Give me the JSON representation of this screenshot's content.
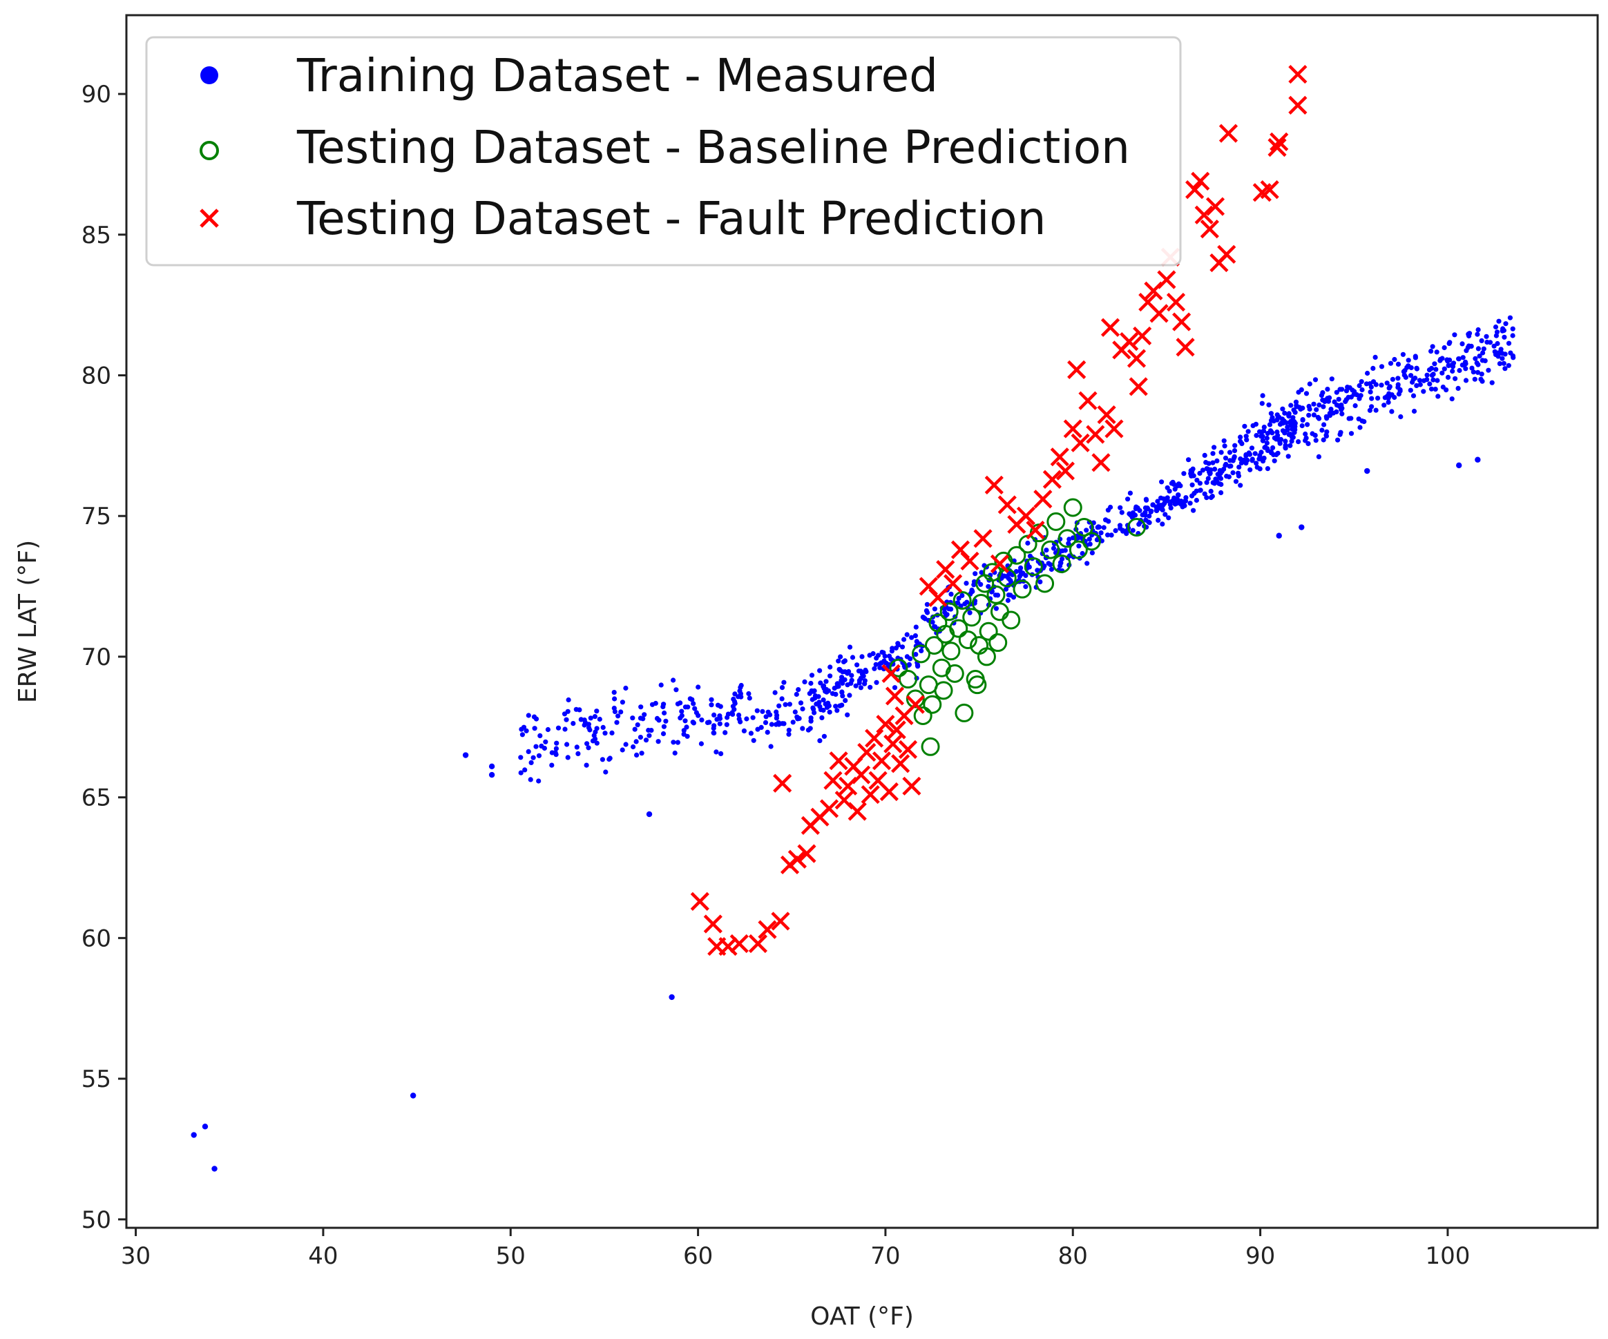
{
  "chart_data": {
    "type": "scatter",
    "xlabel": "OAT (°F)",
    "ylabel": "ERW LAT (°F)",
    "xlim": [
      29.5,
      108
    ],
    "ylim": [
      49.7,
      92.8
    ],
    "x_ticks": [
      30,
      40,
      50,
      60,
      70,
      80,
      90,
      100
    ],
    "y_ticks": [
      50,
      55,
      60,
      65,
      70,
      75,
      80,
      85,
      90
    ],
    "grid": false,
    "legend_position": "top-left",
    "colors": {
      "measured": "#0000ff",
      "baseline": "#008000",
      "fault": "#ff0000"
    },
    "series": [
      {
        "name": "Training Dataset - Measured",
        "marker": "dot",
        "color": "#0000ff",
        "band_model": [
          {
            "x_from": 50.5,
            "x_to": 68,
            "y_from": 66.9,
            "y_to": 68.6,
            "spread": 0.9,
            "count": 260
          },
          {
            "x_from": 66,
            "x_to": 72,
            "y_from": 68.6,
            "y_to": 70.4,
            "spread": 0.6,
            "count": 120
          },
          {
            "x_from": 72,
            "x_to": 86,
            "y_from": 71.2,
            "y_to": 75.9,
            "spread": 0.55,
            "count": 300
          },
          {
            "x_from": 86,
            "x_to": 92,
            "y_from": 75.9,
            "y_to": 78.3,
            "spread": 0.6,
            "count": 160
          },
          {
            "x_from": 90,
            "x_to": 103.5,
            "y_from": 77.9,
            "y_to": 81.2,
            "spread": 0.85,
            "count": 320
          }
        ],
        "outliers": [
          {
            "x": 33.1,
            "y": 53.0
          },
          {
            "x": 33.7,
            "y": 53.3
          },
          {
            "x": 34.2,
            "y": 51.8
          },
          {
            "x": 44.8,
            "y": 54.4
          },
          {
            "x": 47.6,
            "y": 66.5
          },
          {
            "x": 49.0,
            "y": 65.8
          },
          {
            "x": 49.0,
            "y": 66.1
          },
          {
            "x": 57.4,
            "y": 64.4
          },
          {
            "x": 58.6,
            "y": 57.9
          },
          {
            "x": 91.0,
            "y": 74.3
          },
          {
            "x": 92.2,
            "y": 74.6
          },
          {
            "x": 95.7,
            "y": 76.6
          },
          {
            "x": 101.6,
            "y": 77.0
          },
          {
            "x": 100.6,
            "y": 76.8
          }
        ]
      },
      {
        "name": "Testing Dataset - Baseline Prediction",
        "marker": "open-circle",
        "color": "#008000",
        "points": [
          {
            "x": 70.7,
            "y": 69.6
          },
          {
            "x": 71.2,
            "y": 69.2
          },
          {
            "x": 71.6,
            "y": 68.5
          },
          {
            "x": 72.0,
            "y": 67.9
          },
          {
            "x": 72.4,
            "y": 66.8
          },
          {
            "x": 71.9,
            "y": 70.1
          },
          {
            "x": 72.3,
            "y": 69.0
          },
          {
            "x": 72.6,
            "y": 70.4
          },
          {
            "x": 72.8,
            "y": 71.2
          },
          {
            "x": 73.0,
            "y": 69.6
          },
          {
            "x": 73.2,
            "y": 70.8
          },
          {
            "x": 73.4,
            "y": 71.6
          },
          {
            "x": 73.5,
            "y": 70.2
          },
          {
            "x": 73.7,
            "y": 69.4
          },
          {
            "x": 73.9,
            "y": 71.0
          },
          {
            "x": 74.1,
            "y": 72.0
          },
          {
            "x": 74.2,
            "y": 68.0
          },
          {
            "x": 74.4,
            "y": 70.6
          },
          {
            "x": 74.6,
            "y": 71.4
          },
          {
            "x": 74.8,
            "y": 69.2
          },
          {
            "x": 75.0,
            "y": 70.4
          },
          {
            "x": 75.1,
            "y": 71.9
          },
          {
            "x": 75.3,
            "y": 72.6
          },
          {
            "x": 75.5,
            "y": 70.9
          },
          {
            "x": 75.7,
            "y": 73.0
          },
          {
            "x": 75.9,
            "y": 72.2
          },
          {
            "x": 76.1,
            "y": 71.6
          },
          {
            "x": 76.3,
            "y": 73.4
          },
          {
            "x": 76.5,
            "y": 72.8
          },
          {
            "x": 76.7,
            "y": 71.3
          },
          {
            "x": 77.0,
            "y": 73.6
          },
          {
            "x": 77.3,
            "y": 72.4
          },
          {
            "x": 77.6,
            "y": 74.0
          },
          {
            "x": 77.9,
            "y": 73.2
          },
          {
            "x": 78.2,
            "y": 74.4
          },
          {
            "x": 78.5,
            "y": 72.6
          },
          {
            "x": 78.8,
            "y": 73.8
          },
          {
            "x": 79.1,
            "y": 74.8
          },
          {
            "x": 79.4,
            "y": 73.3
          },
          {
            "x": 79.7,
            "y": 74.2
          },
          {
            "x": 80.0,
            "y": 75.3
          },
          {
            "x": 80.3,
            "y": 73.8
          },
          {
            "x": 80.6,
            "y": 74.6
          },
          {
            "x": 81.0,
            "y": 74.1
          },
          {
            "x": 83.4,
            "y": 74.6
          },
          {
            "x": 72.5,
            "y": 68.3
          },
          {
            "x": 73.1,
            "y": 68.8
          },
          {
            "x": 74.9,
            "y": 69.0
          },
          {
            "x": 75.4,
            "y": 70.0
          },
          {
            "x": 76.0,
            "y": 70.5
          }
        ]
      },
      {
        "name": "Testing Dataset - Fault Prediction",
        "marker": "x",
        "color": "#ff0000",
        "points": [
          {
            "x": 60.1,
            "y": 61.3
          },
          {
            "x": 60.8,
            "y": 60.5
          },
          {
            "x": 61.0,
            "y": 59.7
          },
          {
            "x": 61.6,
            "y": 59.7
          },
          {
            "x": 62.2,
            "y": 59.8
          },
          {
            "x": 63.2,
            "y": 59.8
          },
          {
            "x": 63.7,
            "y": 60.3
          },
          {
            "x": 64.4,
            "y": 60.6
          },
          {
            "x": 64.5,
            "y": 65.5
          },
          {
            "x": 64.9,
            "y": 62.6
          },
          {
            "x": 65.3,
            "y": 62.8
          },
          {
            "x": 65.8,
            "y": 63.0
          },
          {
            "x": 66.0,
            "y": 64.0
          },
          {
            "x": 66.5,
            "y": 64.3
          },
          {
            "x": 67.0,
            "y": 64.6
          },
          {
            "x": 67.2,
            "y": 65.6
          },
          {
            "x": 67.5,
            "y": 66.3
          },
          {
            "x": 67.8,
            "y": 64.9
          },
          {
            "x": 68.0,
            "y": 65.4
          },
          {
            "x": 68.3,
            "y": 66.1
          },
          {
            "x": 68.5,
            "y": 64.5
          },
          {
            "x": 68.7,
            "y": 65.8
          },
          {
            "x": 69.0,
            "y": 66.6
          },
          {
            "x": 69.2,
            "y": 65.1
          },
          {
            "x": 69.4,
            "y": 67.1
          },
          {
            "x": 69.6,
            "y": 65.6
          },
          {
            "x": 69.8,
            "y": 66.3
          },
          {
            "x": 70.0,
            "y": 67.6
          },
          {
            "x": 70.2,
            "y": 65.2
          },
          {
            "x": 70.4,
            "y": 66.9
          },
          {
            "x": 70.6,
            "y": 67.4
          },
          {
            "x": 70.8,
            "y": 66.2
          },
          {
            "x": 71.0,
            "y": 67.9
          },
          {
            "x": 71.2,
            "y": 66.7
          },
          {
            "x": 71.4,
            "y": 65.4
          },
          {
            "x": 71.6,
            "y": 68.3
          },
          {
            "x": 70.3,
            "y": 69.4
          },
          {
            "x": 70.5,
            "y": 68.6
          },
          {
            "x": 72.3,
            "y": 72.5
          },
          {
            "x": 72.8,
            "y": 72.1
          },
          {
            "x": 73.2,
            "y": 73.1
          },
          {
            "x": 73.6,
            "y": 72.6
          },
          {
            "x": 74.0,
            "y": 73.8
          },
          {
            "x": 74.5,
            "y": 73.4
          },
          {
            "x": 75.2,
            "y": 74.2
          },
          {
            "x": 75.8,
            "y": 76.1
          },
          {
            "x": 76.1,
            "y": 73.3
          },
          {
            "x": 76.5,
            "y": 75.4
          },
          {
            "x": 77.0,
            "y": 74.7
          },
          {
            "x": 77.5,
            "y": 75.0
          },
          {
            "x": 78.0,
            "y": 74.5
          },
          {
            "x": 78.4,
            "y": 75.6
          },
          {
            "x": 78.9,
            "y": 76.3
          },
          {
            "x": 79.3,
            "y": 77.1
          },
          {
            "x": 79.6,
            "y": 76.6
          },
          {
            "x": 80.0,
            "y": 78.1
          },
          {
            "x": 80.2,
            "y": 80.2
          },
          {
            "x": 80.4,
            "y": 77.6
          },
          {
            "x": 80.8,
            "y": 79.1
          },
          {
            "x": 81.2,
            "y": 77.9
          },
          {
            "x": 81.5,
            "y": 76.9
          },
          {
            "x": 81.8,
            "y": 78.6
          },
          {
            "x": 82.2,
            "y": 78.1
          },
          {
            "x": 82.0,
            "y": 81.7
          },
          {
            "x": 82.6,
            "y": 80.9
          },
          {
            "x": 83.0,
            "y": 81.2
          },
          {
            "x": 83.4,
            "y": 80.6
          },
          {
            "x": 83.7,
            "y": 81.4
          },
          {
            "x": 83.5,
            "y": 79.6
          },
          {
            "x": 84.0,
            "y": 82.6
          },
          {
            "x": 84.3,
            "y": 83.0
          },
          {
            "x": 84.6,
            "y": 82.2
          },
          {
            "x": 85.0,
            "y": 83.4
          },
          {
            "x": 85.2,
            "y": 84.2
          },
          {
            "x": 85.5,
            "y": 82.6
          },
          {
            "x": 85.8,
            "y": 81.9
          },
          {
            "x": 86.0,
            "y": 81.0
          },
          {
            "x": 86.5,
            "y": 86.6
          },
          {
            "x": 86.8,
            "y": 86.9
          },
          {
            "x": 87.0,
            "y": 85.7
          },
          {
            "x": 87.3,
            "y": 85.2
          },
          {
            "x": 87.6,
            "y": 86.0
          },
          {
            "x": 87.8,
            "y": 84.0
          },
          {
            "x": 88.2,
            "y": 84.3
          },
          {
            "x": 88.3,
            "y": 88.6
          },
          {
            "x": 90.1,
            "y": 86.5
          },
          {
            "x": 90.5,
            "y": 86.6
          },
          {
            "x": 90.9,
            "y": 88.1
          },
          {
            "x": 91.0,
            "y": 88.3
          },
          {
            "x": 92.0,
            "y": 90.7
          },
          {
            "x": 92.0,
            "y": 89.6
          }
        ]
      }
    ]
  }
}
